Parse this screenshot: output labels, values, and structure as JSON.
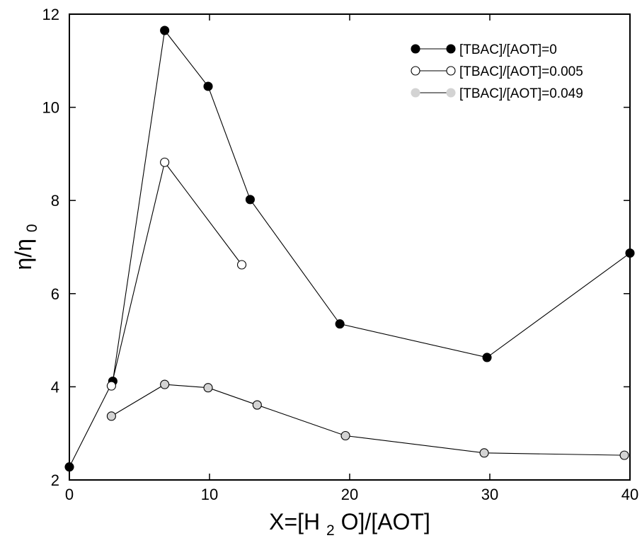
{
  "chart_data": {
    "type": "line",
    "title": "",
    "xlabel": {
      "parts": [
        "X=[H",
        "2",
        "O]/[AOT]"
      ]
    },
    "ylabel": {
      "parts": [
        "η/η",
        "0"
      ]
    },
    "xlim": [
      0,
      40
    ],
    "ylim": [
      2,
      12
    ],
    "x_ticks": [
      0,
      10,
      20,
      30,
      40
    ],
    "y_ticks": [
      2,
      4,
      6,
      8,
      10,
      12
    ],
    "grid": false,
    "legend_position": "top-right",
    "series": [
      {
        "name": "[TBAC]/[AOT]=0",
        "marker_fill": "#000000",
        "legend_marker": "#000000",
        "points": [
          [
            0,
            2.28
          ],
          [
            3.1,
            4.12
          ],
          [
            6.8,
            11.65
          ],
          [
            9.9,
            10.45
          ],
          [
            12.9,
            8.02
          ],
          [
            19.3,
            5.35
          ],
          [
            29.8,
            4.63
          ],
          [
            40,
            6.87
          ]
        ]
      },
      {
        "name": "[TBAC]/[AOT]=0.005",
        "marker_fill": "#ffffff",
        "legend_marker": "#ffffff",
        "points": [
          [
            3.0,
            4.02
          ],
          [
            6.8,
            8.82
          ],
          [
            12.3,
            6.62
          ]
        ]
      },
      {
        "name": "[TBAC]/[AOT]=0.049",
        "marker_fill": "#d3d3d3",
        "legend_marker": "#d3d3d3",
        "points": [
          [
            3.0,
            3.37
          ],
          [
            6.8,
            4.05
          ],
          [
            9.9,
            3.98
          ],
          [
            13.4,
            3.61
          ],
          [
            19.7,
            2.95
          ],
          [
            29.6,
            2.58
          ],
          [
            39.6,
            2.53
          ]
        ]
      }
    ]
  }
}
